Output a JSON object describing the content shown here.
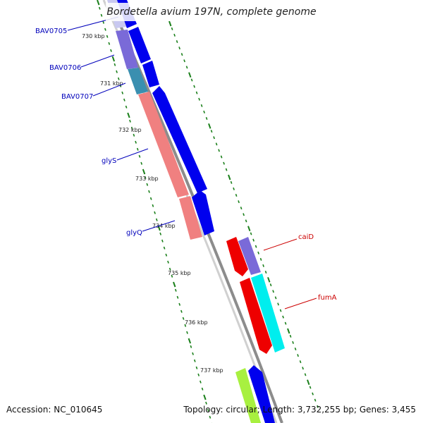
{
  "title": "Bordetella avium 197N, complete genome",
  "accession_text": "Accession: NC_010645",
  "summary_text": "Topology: circular; Length: 3,732,255 bp; Genes: 3,455",
  "colors": {
    "backbone": "#8c8c8c",
    "tick": "#1a7f1a",
    "forward_gene": "#0000ee",
    "label_left": "#0000bb",
    "label_right": "#cc0000",
    "rrna": "#f08080",
    "purple": "#7a6ad8",
    "teal": "#3a8fb0",
    "red": "#ee0000",
    "cyan": "#00eeee",
    "lime": "#a8f040"
  },
  "tick_labels": [
    "730 kbp",
    "731 kbp",
    "732 kbp",
    "733 kbp",
    "734 kbp",
    "735 kbp",
    "736 kbp",
    "737 kbp"
  ],
  "gene_labels_left": [
    "BAV0705",
    "BAV0706",
    "BAV0707",
    "glyS",
    "glyQ"
  ],
  "gene_labels_right": [
    "caiD",
    "fumA"
  ]
}
